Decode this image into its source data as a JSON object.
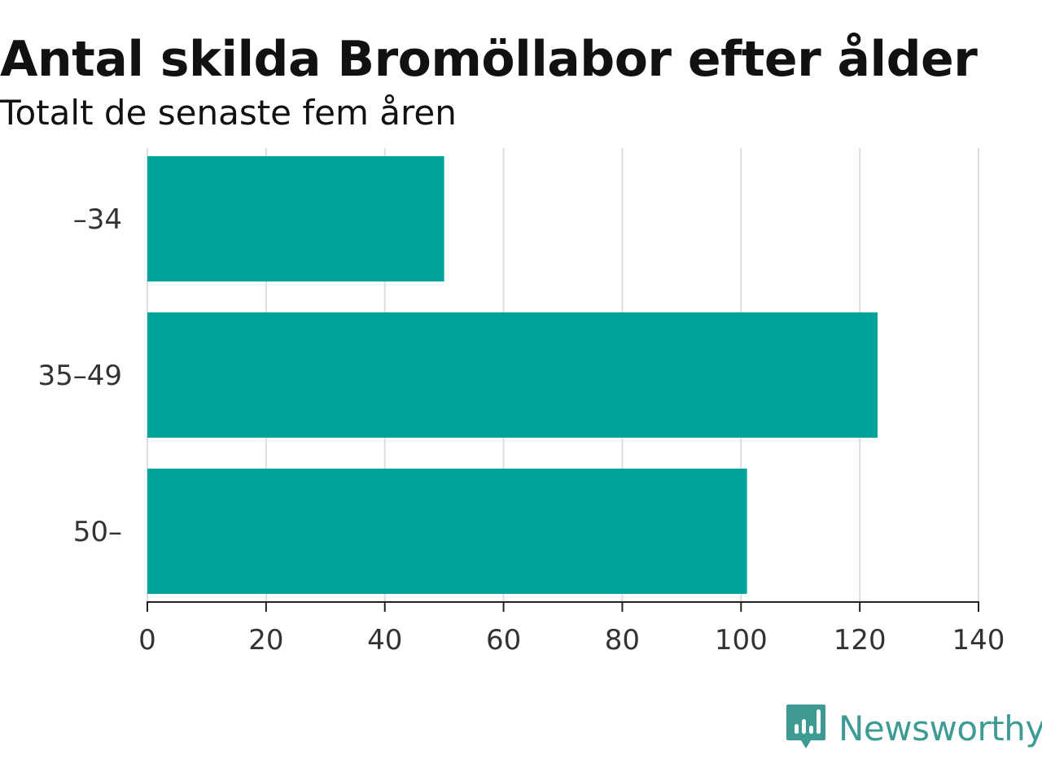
{
  "chart_data": {
    "type": "bar",
    "orientation": "horizontal",
    "title": "Antal skilda Bromöllabor efter ålder",
    "subtitle": "Totalt de senaste fem åren",
    "categories": [
      "–34",
      "35–49",
      "50–"
    ],
    "values": [
      50,
      123,
      101
    ],
    "xlim": [
      0,
      140
    ],
    "xticks": [
      0,
      20,
      40,
      60,
      80,
      100,
      120,
      140
    ],
    "grid": true,
    "bar_color": "#00a39a"
  },
  "brand": {
    "name": "Newsworthy",
    "color": "#3e9b94",
    "icon": "newsworthy-logo-icon"
  }
}
